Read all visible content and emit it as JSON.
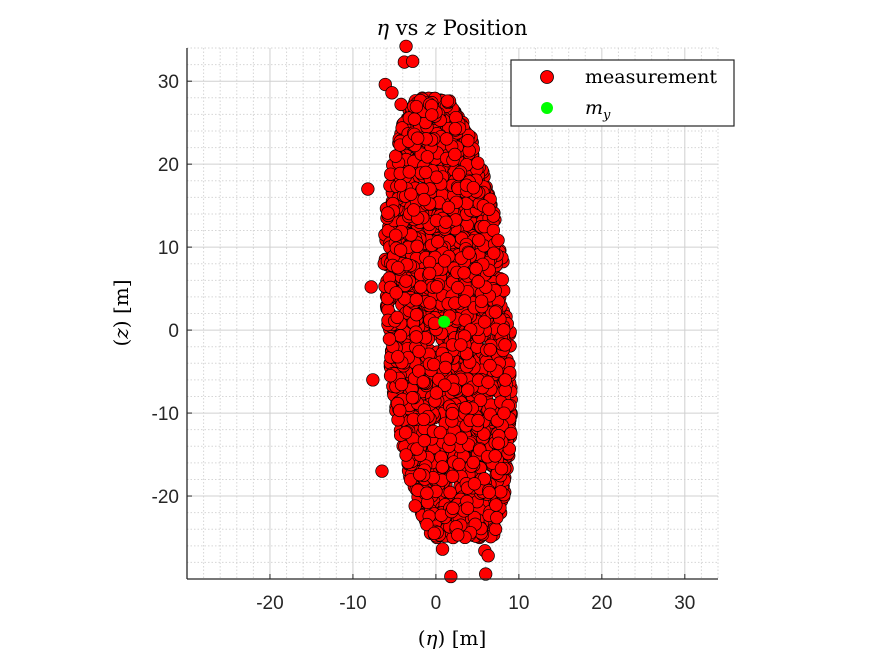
{
  "chart_data": {
    "type": "scatter",
    "title_parts": [
      "η",
      " vs ",
      "z",
      " Position"
    ],
    "xlabel_parts": [
      "(",
      "η",
      ") [m]"
    ],
    "ylabel_parts": [
      "(",
      "z",
      ") [m]"
    ],
    "xlim": [
      -30,
      34
    ],
    "ylim": [
      -30,
      34
    ],
    "xticks": [
      -20,
      -10,
      0,
      10,
      20,
      30
    ],
    "yticks": [
      -20,
      -10,
      0,
      10,
      20,
      30
    ],
    "grid": true,
    "minor_grid": true,
    "legend_position": "top-right",
    "series": [
      {
        "name": "measurement",
        "color": "#ff0000",
        "edge_color": "#000000",
        "distribution": {
          "x_center": 1.5,
          "y_center": 0,
          "x_halfwidth_at_center": 7.5,
          "y_extent": [
            -25,
            28
          ],
          "tilt": 0.07
        },
        "outliers": [
          [
            -3.6,
            34.2
          ],
          [
            -3.8,
            32.3
          ],
          [
            -2.8,
            32.4
          ],
          [
            -6.1,
            29.6
          ],
          [
            -5.3,
            28.6
          ],
          [
            -4.2,
            27.2
          ],
          [
            1.4,
            27.6
          ],
          [
            -8.2,
            17.0
          ],
          [
            -7.8,
            5.2
          ],
          [
            -7.6,
            -6.0
          ],
          [
            -6.5,
            -17.0
          ],
          [
            -2.5,
            -21.2
          ],
          [
            -0.2,
            -24.5
          ],
          [
            0.8,
            -26.4
          ],
          [
            5.9,
            -26.6
          ],
          [
            6.3,
            -27.2
          ],
          [
            1.8,
            -29.7
          ],
          [
            6.0,
            -29.4
          ]
        ]
      },
      {
        "name": "m_y",
        "color": "#00ff00",
        "points": [
          [
            1.0,
            1.0
          ]
        ]
      }
    ]
  },
  "legend": {
    "measurement_label": "measurement",
    "my_label_main": "m",
    "my_label_sub": "y"
  }
}
